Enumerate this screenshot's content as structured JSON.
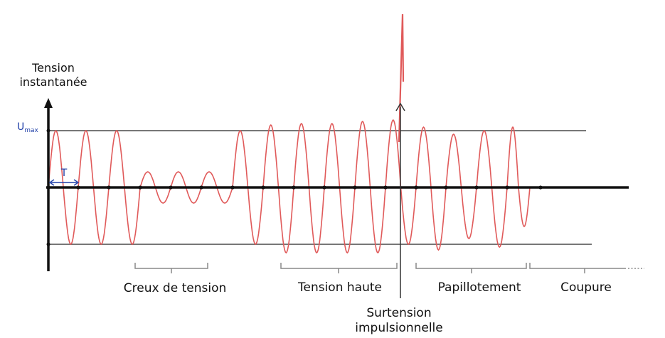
{
  "y_axis_label": [
    "Tension",
    "instantanée"
  ],
  "umax_label": "U",
  "umax_sub": "max",
  "period_label": "T",
  "segments": {
    "dip": "Creux de tension",
    "high": "Tension haute",
    "flicker": "Papillotement",
    "cut": "Coupure",
    "surge": [
      "Surtension",
      "impulsionnelle"
    ]
  },
  "colors": {
    "wave": "#e05a5a",
    "axis": "#111111",
    "limit_lines": "#777777",
    "brackets": "#888888",
    "accent": "#1f3fa8"
  }
}
